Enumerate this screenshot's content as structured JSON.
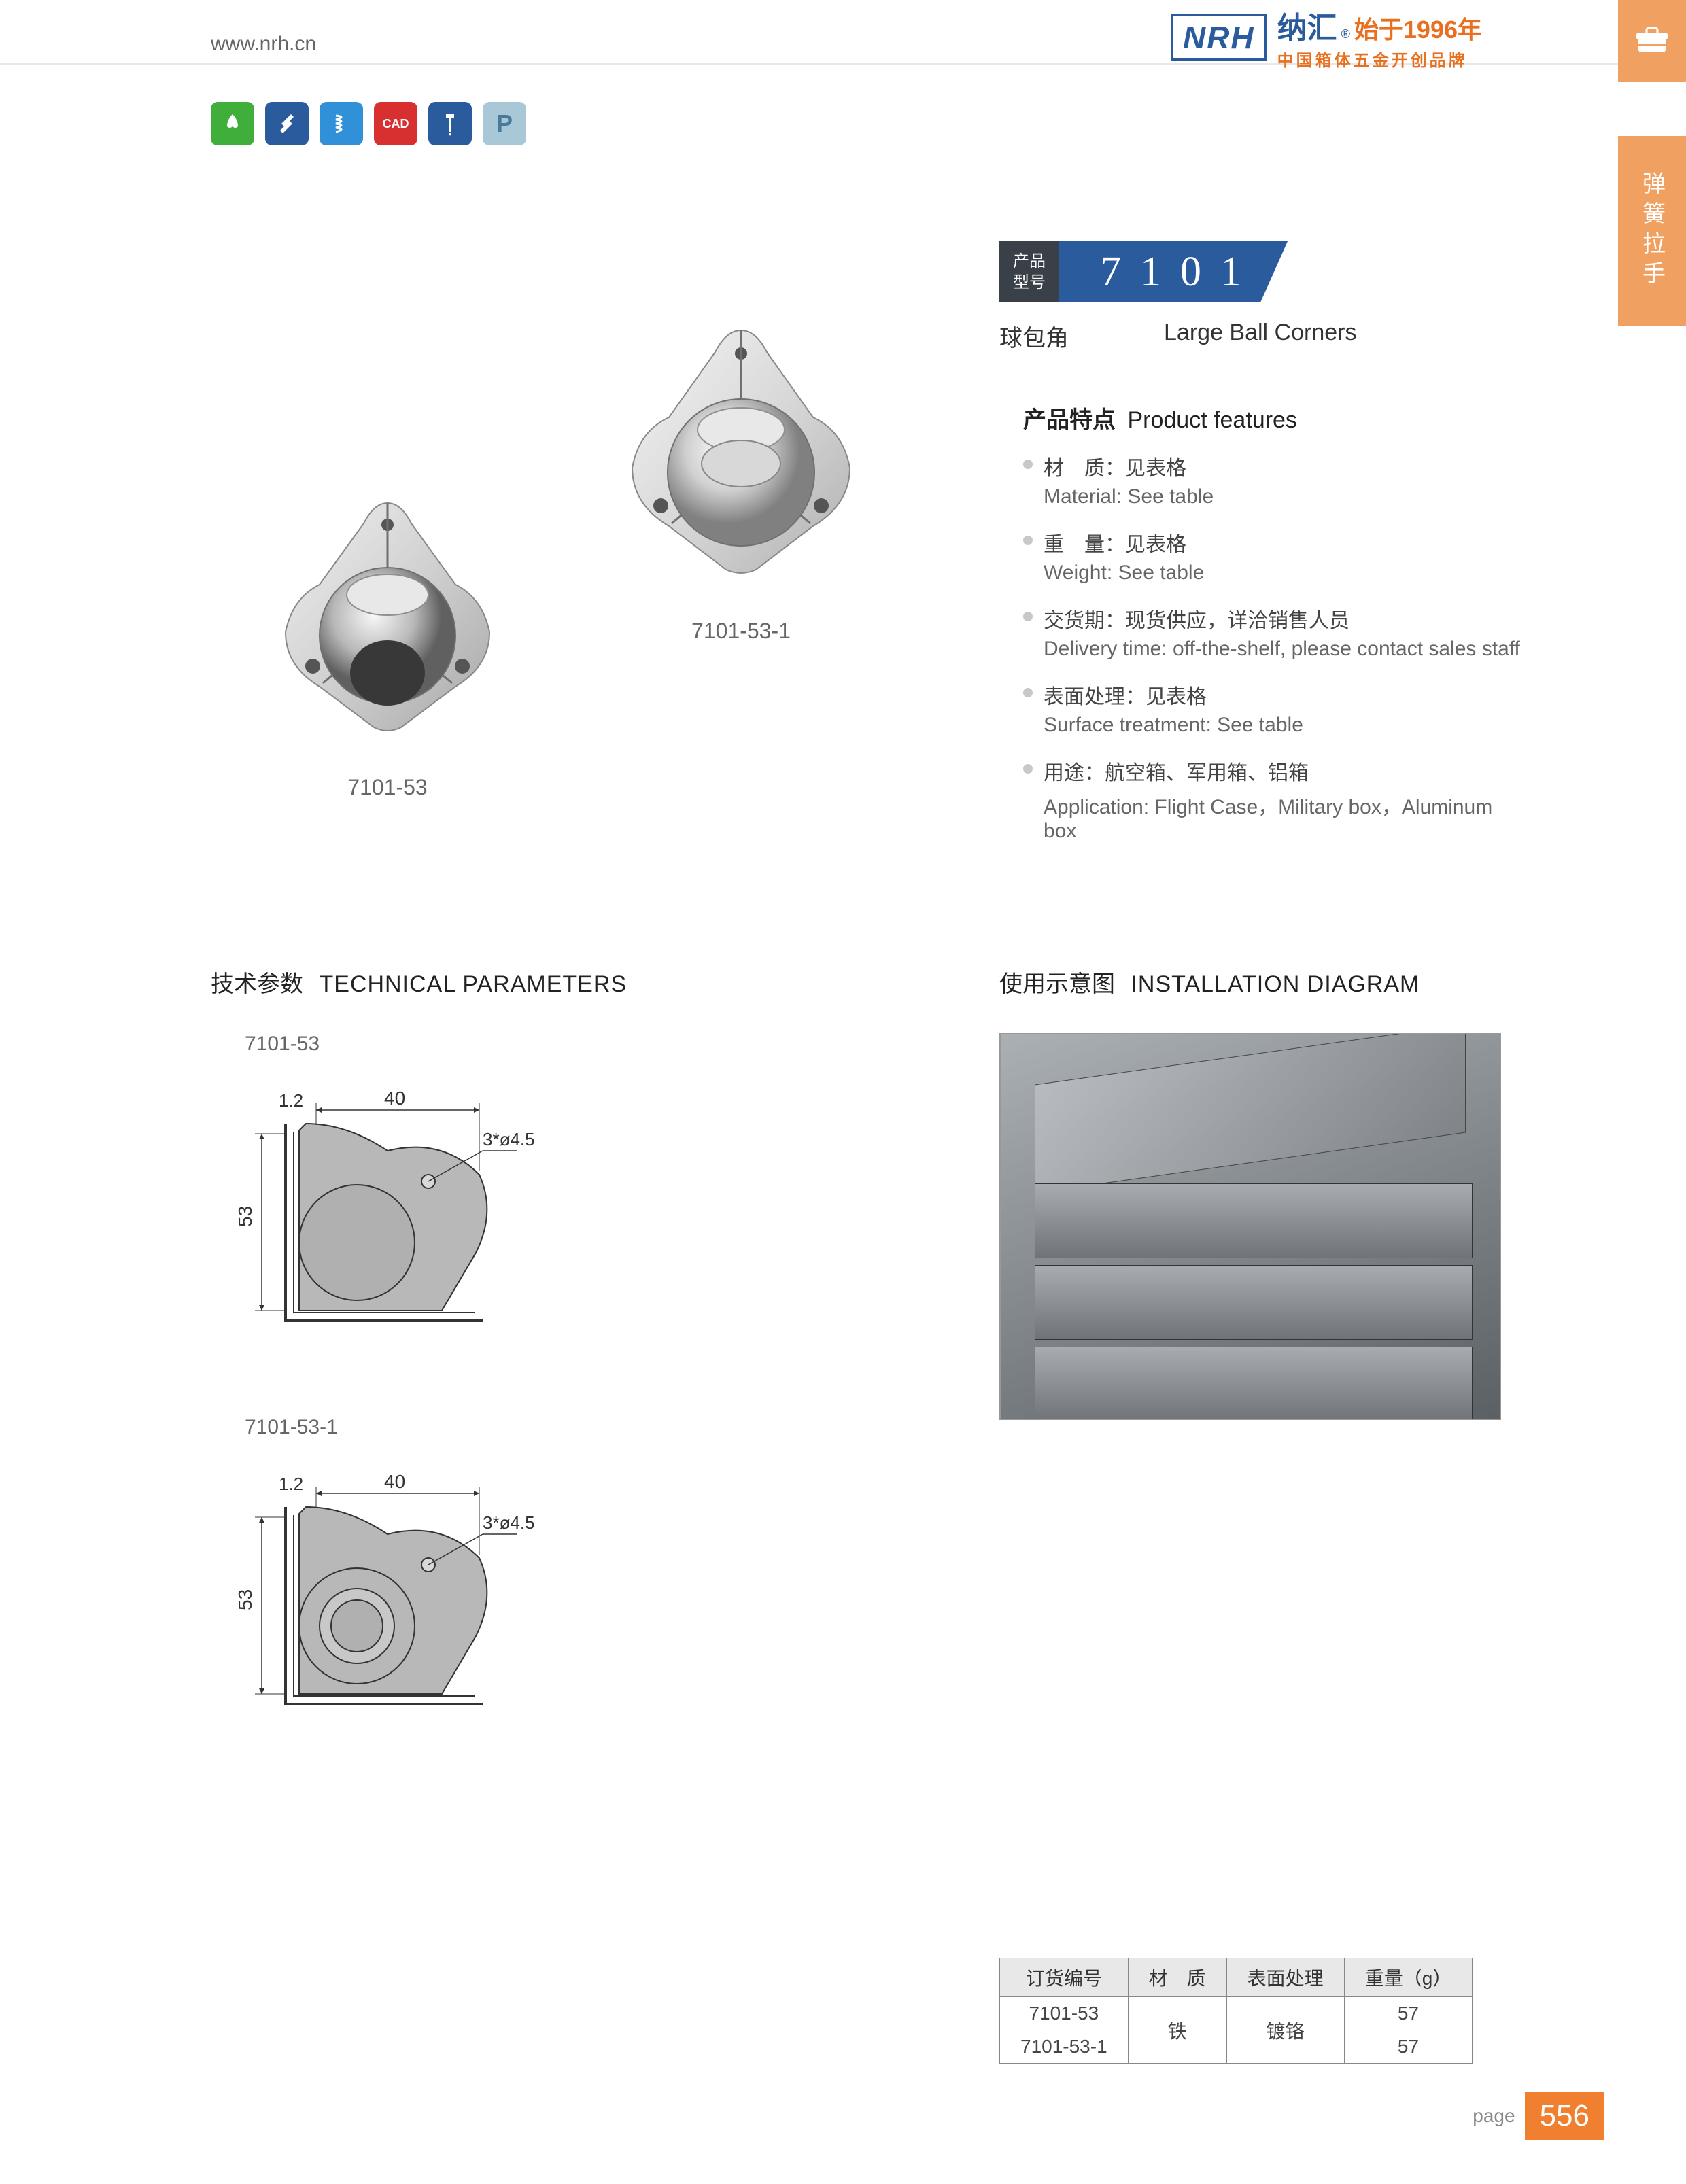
{
  "header": {
    "url": "www.nrh.cn",
    "logo": "NRH",
    "brand_cn": "纳汇",
    "brand_year": "始于1996年",
    "brand_sub": "中国箱体五金开创品牌"
  },
  "side_tab": "弹簧拉手",
  "icons": [
    {
      "color": "#3fae3a",
      "symbol": "leaf"
    },
    {
      "color": "#2a5b9c",
      "symbol": "tools"
    },
    {
      "color": "#3090d8",
      "symbol": "spring"
    },
    {
      "color": "#d83030",
      "symbol": "CAD"
    },
    {
      "color": "#2a5b9c",
      "symbol": "screw"
    },
    {
      "color": "#a8c8d8",
      "symbol": "P"
    }
  ],
  "product": {
    "badge_label_1": "产品",
    "badge_label_2": "型号",
    "number": "7101",
    "sub_cn": "球包角",
    "sub_en": "Large Ball Corners"
  },
  "product_images": [
    {
      "caption": "7101-53",
      "variant": "ball"
    },
    {
      "caption": "7101-53-1",
      "variant": "flat"
    }
  ],
  "features": {
    "title_cn": "产品特点",
    "title_en": "Product features",
    "items": [
      {
        "cn": "材　质：见表格",
        "en": "Material: See table"
      },
      {
        "cn": "重　量：见表格",
        "en": "Weight: See table"
      },
      {
        "cn": "交货期：现货供应，详洽销售人员",
        "en": "Delivery time: off-the-shelf, please contact sales staff"
      },
      {
        "cn": "表面处理：见表格",
        "en": "Surface treatment:   See table"
      },
      {
        "cn": "用途：航空箱、军用箱、铝箱",
        "en": "Application: Flight Case，Military box，Aluminum box"
      }
    ]
  },
  "tech": {
    "title_cn": "技术参数",
    "title_en": "TECHNICAL PARAMETERS",
    "drawings": [
      {
        "label": "7101-53",
        "dim_thickness": "1.2",
        "dim_width": "40",
        "dim_height": "53",
        "dim_hole": "3*ø4.5",
        "variant": "ball"
      },
      {
        "label": "7101-53-1",
        "dim_thickness": "1.2",
        "dim_width": "40",
        "dim_height": "53",
        "dim_hole": "3*ø4.5",
        "variant": "flat"
      }
    ]
  },
  "install": {
    "title_cn": "使用示意图",
    "title_en": "INSTALLATION DIAGRAM"
  },
  "spec_table": {
    "headers": [
      "订货编号",
      "材　质",
      "表面处理",
      "重量（g）"
    ],
    "rows": [
      [
        "7101-53",
        "铁",
        "镀铬",
        "57"
      ],
      [
        "7101-53-1",
        "铁",
        "镀铬",
        "57"
      ]
    ],
    "merge_cols": [
      1,
      2
    ]
  },
  "page_number": {
    "label": "page",
    "num": "556"
  },
  "colors": {
    "primary_blue": "#2a5b9c",
    "orange": "#f08030",
    "dark": "#3a4048",
    "light_orange": "#f0a060"
  }
}
